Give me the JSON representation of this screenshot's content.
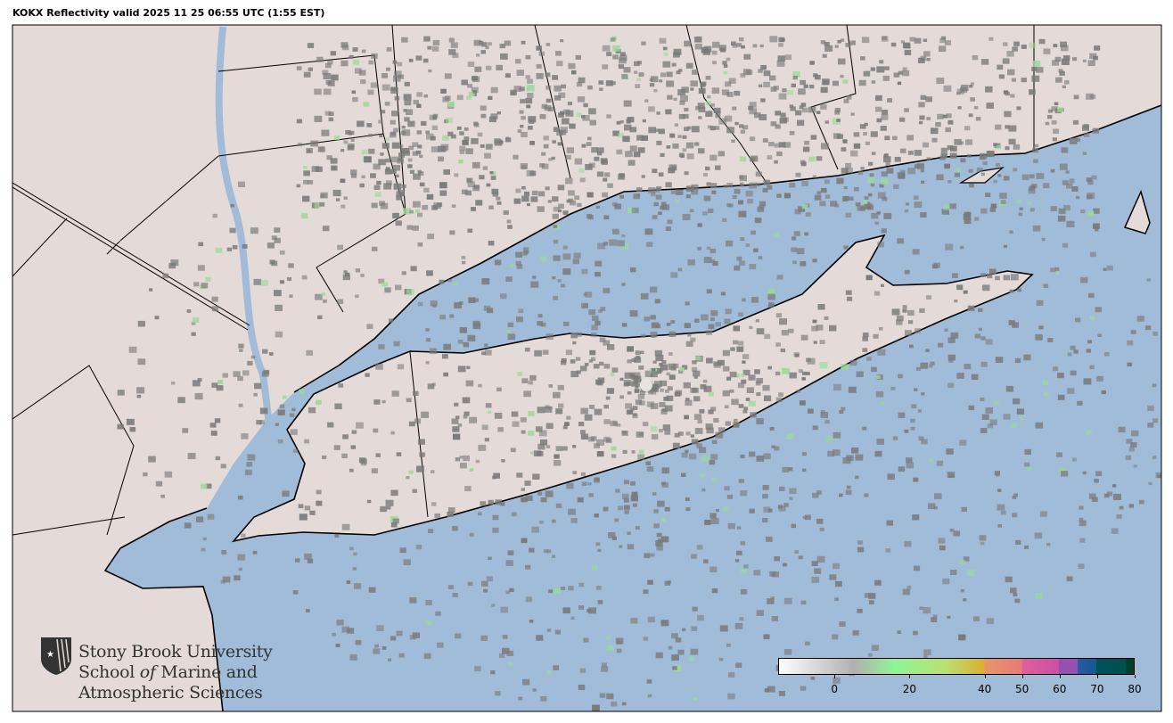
{
  "title": "KOKX Reflectivity valid 2025 11 25 06:55 UTC (1:55 EST)",
  "map": {
    "radar_site": "KOKX",
    "colors": {
      "land": "#e4dad7",
      "water": "#a0bcd8",
      "echo": "#7a7a7a",
      "border": "#000000"
    }
  },
  "logo": {
    "line1": "Stony Brook University",
    "line2a": "School ",
    "line2b": "of",
    "line2c": " Marine and",
    "line3": "Atmospheric Sciences"
  },
  "colorbar": {
    "min": -15,
    "max": 80,
    "ticks": [
      0,
      20,
      40,
      50,
      60,
      70,
      80
    ],
    "stops": [
      {
        "v": -15,
        "c": "#ffffff"
      },
      {
        "v": 5,
        "c": "#b0b0b0"
      },
      {
        "v": 16,
        "c": "#8ef598"
      },
      {
        "v": 30,
        "c": "#b8e070"
      },
      {
        "v": 40,
        "c": "#dbae30"
      },
      {
        "v": 40,
        "c": "#e8956a"
      },
      {
        "v": 50,
        "c": "#e87a78"
      },
      {
        "v": 50,
        "c": "#e0609a"
      },
      {
        "v": 60,
        "c": "#c850a8"
      },
      {
        "v": 60,
        "c": "#9650b0"
      },
      {
        "v": 65,
        "c": "#9650b0"
      },
      {
        "v": 65,
        "c": "#2c5aa0"
      },
      {
        "v": 70,
        "c": "#105a90"
      },
      {
        "v": 70,
        "c": "#005058"
      },
      {
        "v": 78,
        "c": "#005050"
      },
      {
        "v": 78,
        "c": "#003e30"
      },
      {
        "v": 80,
        "c": "#003e30"
      }
    ]
  }
}
